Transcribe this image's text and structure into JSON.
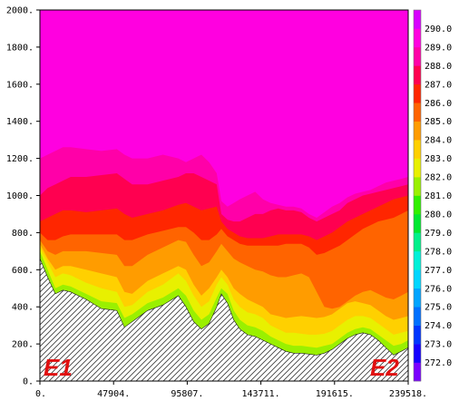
{
  "chart_data": {
    "type": "area",
    "title": "",
    "xlabel": "",
    "ylabel": "",
    "xlim": [
      0,
      239518
    ],
    "ylim": [
      0,
      2000
    ],
    "x_tick_labels": [
      "0.",
      "47904.",
      "95807.",
      "143711.",
      "191615.",
      "239518."
    ],
    "x_ticks": [
      0,
      47904,
      95807,
      143711,
      191615,
      239518
    ],
    "y_tick_labels": [
      "0.",
      "200.",
      "400.",
      "600.",
      "800.",
      "1000.",
      "1200.",
      "1400.",
      "1600.",
      "1800.",
      "2000."
    ],
    "y_ticks": [
      0,
      200,
      400,
      600,
      800,
      1000,
      1200,
      1400,
      1600,
      1800,
      2000
    ],
    "endpoints": [
      "E1",
      "E2"
    ],
    "terrain_hatch": true,
    "colorbar": {
      "levels": [
        "272.0",
        "273.0",
        "274.0",
        "275.0",
        "276.0",
        "277.0",
        "278.0",
        "279.0",
        "280.0",
        "281.0",
        "282.0",
        "283.0",
        "284.0",
        "285.0",
        "286.0",
        "287.0",
        "288.0",
        "289.0",
        "290.0"
      ],
      "colors": [
        "#7a00ff",
        "#1500ff",
        "#0035ff",
        "#0070ff",
        "#00a4ff",
        "#00d6ff",
        "#00f0d8",
        "#00f08a",
        "#00e830",
        "#30f000",
        "#9af000",
        "#e8f000",
        "#ffd000",
        "#ff9c00",
        "#ff6400",
        "#ff2600",
        "#ff0050",
        "#ff00a8",
        "#ff00e0",
        "#d800ff"
      ]
    },
    "x": [
      0,
      5000,
      10000,
      15000,
      20000,
      30000,
      40000,
      50000,
      55000,
      60000,
      70000,
      80000,
      90000,
      95000,
      100000,
      105000,
      110000,
      115000,
      118000,
      122000,
      126000,
      130000,
      135000,
      140000,
      145000,
      150000,
      155000,
      160000,
      165000,
      170000,
      175000,
      180000,
      185000,
      190000,
      195000,
      200000,
      205000,
      210000,
      215000,
      220000,
      225000,
      230000,
      235000,
      239518
    ],
    "terrain": [
      660,
      560,
      470,
      490,
      480,
      440,
      390,
      380,
      290,
      320,
      380,
      410,
      460,
      400,
      320,
      280,
      310,
      400,
      470,
      420,
      330,
      280,
      250,
      240,
      220,
      200,
      180,
      160,
      150,
      150,
      145,
      140,
      150,
      170,
      200,
      230,
      250,
      260,
      250,
      220,
      180,
      140,
      160,
      180
    ],
    "series": [
      {
        "name": "282.0",
        "values": [
          700,
          600,
          500,
          520,
          510,
          470,
          430,
          420,
          340,
          360,
          420,
          450,
          500,
          460,
          380,
          330,
          360,
          450,
          500,
          470,
          380,
          330,
          300,
          290,
          270,
          240,
          220,
          200,
          190,
          190,
          185,
          180,
          190,
          200,
          230,
          260,
          280,
          290,
          280,
          250,
          220,
          190,
          200,
          220
        ]
      },
      {
        "name": "283.0",
        "values": [
          720,
          640,
          560,
          580,
          570,
          530,
          500,
          480,
          400,
          410,
          480,
          520,
          580,
          540,
          460,
          400,
          430,
          520,
          560,
          520,
          440,
          400,
          370,
          360,
          340,
          300,
          280,
          260,
          260,
          255,
          250,
          250,
          255,
          270,
          300,
          330,
          350,
          350,
          340,
          310,
          280,
          250,
          260,
          270
        ]
      },
      {
        "name": "284.0",
        "values": [
          740,
          660,
          600,
          620,
          620,
          600,
          580,
          560,
          480,
          470,
          540,
          580,
          620,
          600,
          520,
          460,
          500,
          560,
          600,
          560,
          500,
          470,
          440,
          420,
          400,
          360,
          350,
          340,
          345,
          350,
          345,
          340,
          345,
          360,
          390,
          420,
          430,
          420,
          410,
          380,
          350,
          330,
          340,
          350
        ]
      },
      {
        "name": "285.0",
        "values": [
          760,
          700,
          680,
          700,
          700,
          700,
          690,
          680,
          620,
          620,
          680,
          720,
          760,
          750,
          680,
          620,
          640,
          700,
          740,
          700,
          660,
          640,
          620,
          600,
          590,
          570,
          560,
          560,
          570,
          580,
          560,
          480,
          400,
          390,
          400,
          430,
          460,
          480,
          490,
          470,
          450,
          440,
          460,
          480
        ]
      },
      {
        "name": "286.0",
        "values": [
          800,
          760,
          760,
          780,
          790,
          790,
          790,
          790,
          760,
          760,
          790,
          810,
          830,
          830,
          800,
          760,
          760,
          790,
          820,
          780,
          760,
          740,
          730,
          730,
          730,
          730,
          730,
          740,
          740,
          740,
          720,
          680,
          690,
          710,
          730,
          760,
          790,
          820,
          840,
          860,
          870,
          880,
          900,
          920
        ]
      },
      {
        "name": "287.0",
        "values": [
          860,
          880,
          900,
          920,
          920,
          910,
          920,
          930,
          900,
          880,
          900,
          920,
          950,
          960,
          940,
          920,
          930,
          940,
          860,
          820,
          800,
          780,
          770,
          770,
          770,
          780,
          790,
          790,
          790,
          790,
          780,
          760,
          780,
          800,
          830,
          860,
          880,
          900,
          920,
          940,
          960,
          980,
          990,
          1000
        ]
      },
      {
        "name": "288.0",
        "values": [
          1000,
          1040,
          1060,
          1080,
          1100,
          1100,
          1110,
          1120,
          1090,
          1060,
          1060,
          1080,
          1100,
          1120,
          1120,
          1100,
          1080,
          1060,
          900,
          870,
          860,
          860,
          880,
          900,
          900,
          920,
          930,
          920,
          920,
          910,
          880,
          860,
          880,
          900,
          920,
          960,
          980,
          1000,
          1010,
          1020,
          1030,
          1040,
          1050,
          1060
        ]
      },
      {
        "name": "289.0",
        "values": [
          1200,
          1220,
          1240,
          1260,
          1260,
          1250,
          1240,
          1250,
          1220,
          1200,
          1200,
          1220,
          1200,
          1180,
          1200,
          1220,
          1180,
          1120,
          970,
          940,
          960,
          980,
          1000,
          1020,
          980,
          960,
          950,
          940,
          940,
          930,
          900,
          880,
          910,
          940,
          960,
          990,
          1010,
          1020,
          1030,
          1050,
          1070,
          1080,
          1090,
          1100
        ]
      },
      {
        "name": "290.0",
        "values": [
          1360,
          1360,
          1330,
          1340,
          1320,
          1330,
          1320,
          1300,
          1270,
          1250,
          1240,
          1240,
          1250,
          1220,
          1260,
          1290,
          1200,
          1140,
          1040,
          1010,
          1030,
          1050,
          1080,
          1080,
          1050,
          1020,
          1000,
          990,
          1000,
          1020,
          1000,
          970,
          1010,
          1060,
          1110,
          1130,
          1100,
          1080,
          1100,
          1120,
          1120,
          1130,
          1140,
          1150
        ]
      }
    ]
  }
}
